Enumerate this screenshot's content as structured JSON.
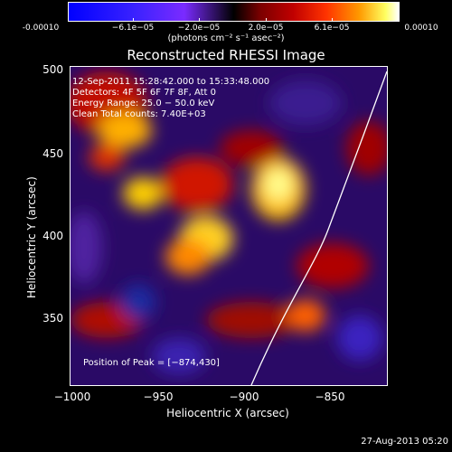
{
  "colorbar": {
    "tick_labels": [
      "-0.00010",
      "−6.1e−05",
      "−2.0e−05",
      "2.0e−05",
      "6.1e−05",
      "0.00010"
    ],
    "units": "(photons cm⁻² s⁻¹ asec⁻²)"
  },
  "title": "Reconstructed RHESSI Image",
  "overlay": {
    "time_range": "12-Sep-2011 15:28:42.000 to 15:33:48.000",
    "detectors": "Detectors: 4F 5F 6F 7F 8F, Att 0",
    "energy_range": "Energy Range: 25.0 − 50.0 keV",
    "clean_counts": "Clean    Total counts: 7.40E+03",
    "peak": "Position of Peak = [−874,430]"
  },
  "axes": {
    "xlabel": "Heliocentric X (arcsec)",
    "ylabel": "Heliocentric Y (arcsec)",
    "xticks": [
      "−1000",
      "−950",
      "−900",
      "−850"
    ],
    "yticks": [
      "500",
      "450",
      "400",
      "350"
    ]
  },
  "footer_date": "27-Aug-2013 05:20",
  "colors": {
    "background": "#000000",
    "limb": "#ffffff"
  }
}
